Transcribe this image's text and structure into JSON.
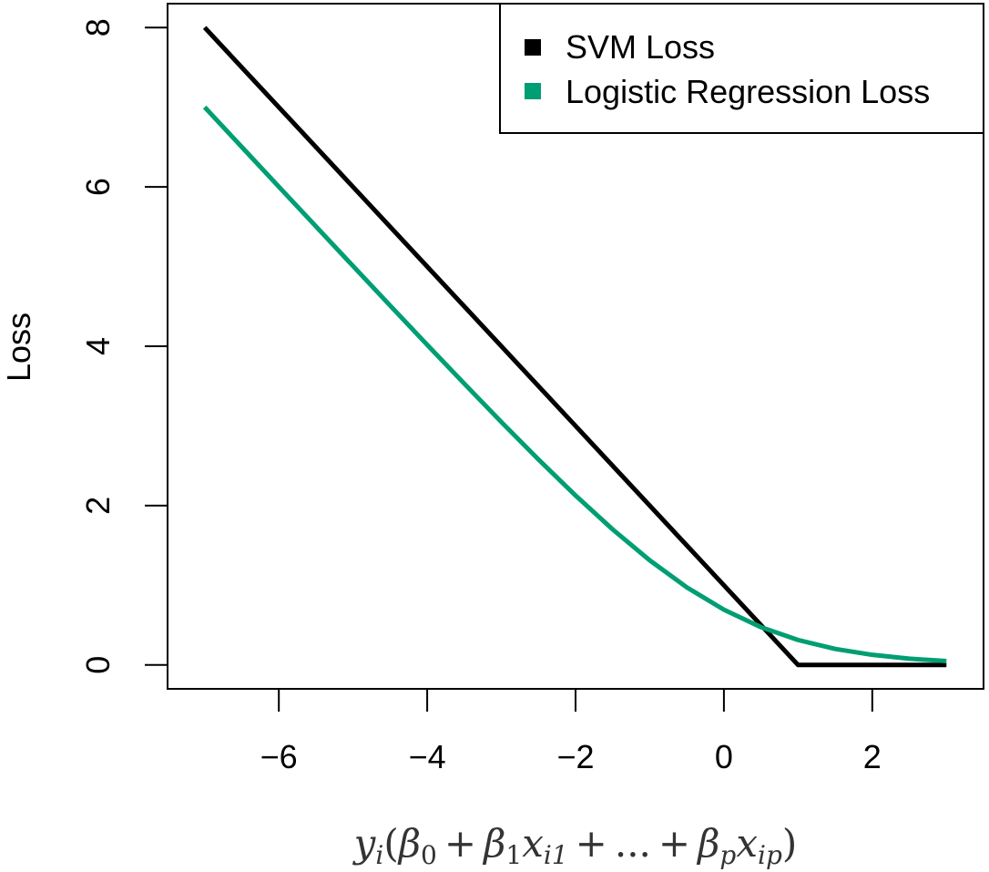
{
  "chart_data": {
    "type": "line",
    "title": "",
    "xlabel": "y_i(β_0 + β_1x_i1 + ... + β_px_ip)",
    "xlabel_parts": {
      "y": "y",
      "i": "i",
      "open": "(",
      "beta": "β",
      "sub0": "0",
      "plus": "+",
      "sub1": "1",
      "x": "x",
      "i1": "i1",
      "dots": "...",
      "subp": "p",
      "ip": "ip",
      "close": ")"
    },
    "ylabel": "Loss",
    "xlim": [
      -7.5,
      3.5
    ],
    "ylim": [
      -0.3,
      8.3
    ],
    "x_ticks": [
      -6,
      -4,
      -2,
      0,
      2
    ],
    "x_tick_labels": [
      "−6",
      "−4",
      "−2",
      "0",
      "2"
    ],
    "y_ticks": [
      0,
      2,
      4,
      6,
      8
    ],
    "y_tick_labels": [
      "0",
      "2",
      "4",
      "6",
      "8"
    ],
    "grid": false,
    "legend_position": "top-right",
    "series": [
      {
        "name": "SVM Loss",
        "color": "#000000",
        "x": [
          -7,
          1,
          3
        ],
        "y": [
          8,
          0,
          0
        ]
      },
      {
        "name": "Logistic Regression Loss",
        "color": "#009E73",
        "x": [
          -7,
          -6.5,
          -6,
          -5.5,
          -5,
          -4.5,
          -4,
          -3.5,
          -3,
          -2.5,
          -2,
          -1.5,
          -1,
          -0.5,
          0,
          0.5,
          1,
          1.5,
          2,
          2.5,
          3
        ],
        "y": [
          7.001,
          6.5015,
          6.0025,
          5.5041,
          5.0067,
          4.5111,
          4.0181,
          3.5302,
          3.0486,
          2.5789,
          2.1269,
          1.7014,
          1.3133,
          0.9741,
          0.6931,
          0.4741,
          0.3133,
          0.2014,
          0.1269,
          0.0789,
          0.0486
        ]
      }
    ]
  }
}
